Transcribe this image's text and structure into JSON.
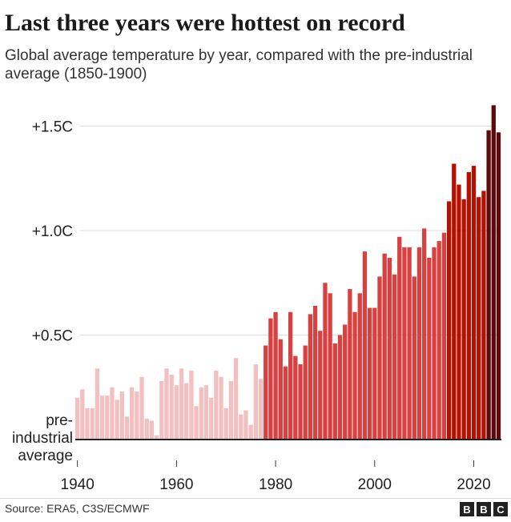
{
  "header": {
    "title": "Last three years were hottest on record",
    "subtitle": "Global average temperature by year, compared with the pre-industrial average (1850-1900)"
  },
  "footer": {
    "source": "Source: ERA5, C3S/ECMWF",
    "logo_letters": [
      "B",
      "B",
      "C"
    ]
  },
  "colors": {
    "low": "#f2c0c0",
    "mid": "#d94040",
    "high": "#b51000",
    "latest": "#5c0a0a",
    "baseline": "#222222"
  },
  "chart_data": {
    "type": "bar",
    "title": "Last three years were hottest on record",
    "subtitle": "Global average temperature by year, compared with the pre-industrial average (1850-1900)",
    "baseline_label": [
      "pre-",
      "industrial",
      "average"
    ],
    "x": [
      1940,
      1941,
      1942,
      1943,
      1944,
      1945,
      1946,
      1947,
      1948,
      1949,
      1950,
      1951,
      1952,
      1953,
      1954,
      1955,
      1956,
      1957,
      1958,
      1959,
      1960,
      1961,
      1962,
      1963,
      1964,
      1965,
      1966,
      1967,
      1968,
      1969,
      1970,
      1971,
      1972,
      1973,
      1974,
      1975,
      1976,
      1977,
      1978,
      1979,
      1980,
      1981,
      1982,
      1983,
      1984,
      1985,
      1986,
      1987,
      1988,
      1989,
      1990,
      1991,
      1992,
      1993,
      1994,
      1995,
      1996,
      1997,
      1998,
      1999,
      2000,
      2001,
      2002,
      2003,
      2004,
      2005,
      2006,
      2007,
      2008,
      2009,
      2010,
      2011,
      2012,
      2013,
      2014,
      2015,
      2016,
      2017,
      2018,
      2019,
      2020,
      2021,
      2022,
      2023,
      2024,
      2025
    ],
    "values": [
      0.2,
      0.24,
      0.15,
      0.15,
      0.34,
      0.21,
      0.21,
      0.25,
      0.19,
      0.23,
      0.11,
      0.25,
      0.23,
      0.3,
      0.1,
      0.09,
      0.02,
      0.28,
      0.34,
      0.31,
      0.26,
      0.34,
      0.27,
      0.33,
      0.16,
      0.25,
      0.26,
      0.2,
      0.33,
      0.3,
      0.15,
      0.28,
      0.39,
      0.12,
      0.14,
      0.07,
      0.36,
      0.29,
      0.45,
      0.58,
      0.61,
      0.48,
      0.35,
      0.61,
      0.4,
      0.36,
      0.45,
      0.6,
      0.64,
      0.52,
      0.75,
      0.7,
      0.46,
      0.5,
      0.55,
      0.72,
      0.61,
      0.7,
      0.9,
      0.63,
      0.63,
      0.78,
      0.89,
      0.87,
      0.79,
      0.97,
      0.92,
      0.92,
      0.78,
      0.92,
      1.01,
      0.87,
      0.92,
      0.95,
      0.99,
      1.14,
      1.32,
      1.22,
      1.15,
      1.28,
      1.31,
      1.16,
      1.19,
      1.48,
      1.6,
      1.47
    ],
    "color_groups": [
      {
        "from": 1940,
        "to": 1977,
        "color": "#f2c0c0"
      },
      {
        "from": 1978,
        "to": 2014,
        "color": "#d94040"
      },
      {
        "from": 2015,
        "to": 2022,
        "color": "#b51000"
      },
      {
        "from": 2023,
        "to": 2025,
        "color": "#5c0a0a"
      }
    ],
    "x_ticks": [
      1940,
      1960,
      1980,
      2000,
      2020
    ],
    "x_tick_labels": [
      "1940",
      "1960",
      "1980",
      "2000",
      "2020"
    ],
    "y_ticks": [
      0.5,
      1.0,
      1.5
    ],
    "y_tick_labels": [
      "+0.5C",
      "+1.0C",
      "+1.5C"
    ],
    "ylim": [
      0,
      1.6
    ],
    "grid": true,
    "xlabel": "",
    "ylabel": ""
  }
}
